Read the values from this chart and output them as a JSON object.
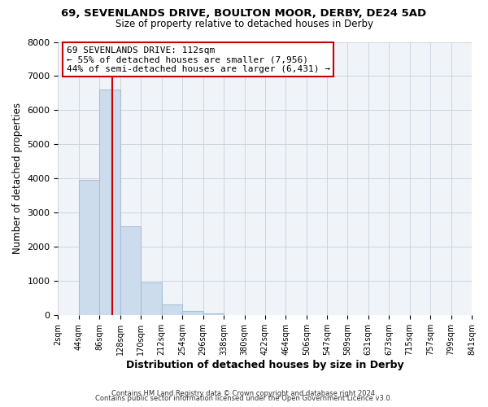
{
  "title": "69, SEVENLANDS DRIVE, BOULTON MOOR, DERBY, DE24 5AD",
  "subtitle": "Size of property relative to detached houses in Derby",
  "xlabel": "Distribution of detached houses by size in Derby",
  "ylabel": "Number of detached properties",
  "bar_color": "#ccdcec",
  "bar_edgecolor": "#a8c0d8",
  "bin_edges": [
    2,
    44,
    86,
    128,
    170,
    212,
    254,
    296,
    338,
    380,
    422,
    464,
    506,
    547,
    589,
    631,
    673,
    715,
    757,
    799,
    841
  ],
  "bar_heights": [
    4,
    3960,
    6600,
    2600,
    960,
    320,
    120,
    60,
    0,
    0,
    0,
    0,
    0,
    0,
    0,
    0,
    0,
    0,
    0,
    0
  ],
  "property_size": 112,
  "vline_color": "#cc0000",
  "annotation_line1": "69 SEVENLANDS DRIVE: 112sqm",
  "annotation_line2": "← 55% of detached houses are smaller (7,956)",
  "annotation_line3": "44% of semi-detached houses are larger (6,431) →",
  "annotation_box_facecolor": "#ffffff",
  "annotation_box_edgecolor": "#cc0000",
  "ylim": [
    0,
    8000
  ],
  "yticks": [
    0,
    1000,
    2000,
    3000,
    4000,
    5000,
    6000,
    7000,
    8000
  ],
  "tick_labels": [
    "2sqm",
    "44sqm",
    "86sqm",
    "128sqm",
    "170sqm",
    "212sqm",
    "254sqm",
    "296sqm",
    "338sqm",
    "380sqm",
    "422sqm",
    "464sqm",
    "506sqm",
    "547sqm",
    "589sqm",
    "631sqm",
    "673sqm",
    "715sqm",
    "757sqm",
    "799sqm",
    "841sqm"
  ],
  "footer_line1": "Contains HM Land Registry data © Crown copyright and database right 2024.",
  "footer_line2": "Contains public sector information licensed under the Open Government Licence v3.0.",
  "bg_color": "#ffffff",
  "plot_bg_color": "#f0f4f8",
  "grid_color": "#c8d0dc"
}
